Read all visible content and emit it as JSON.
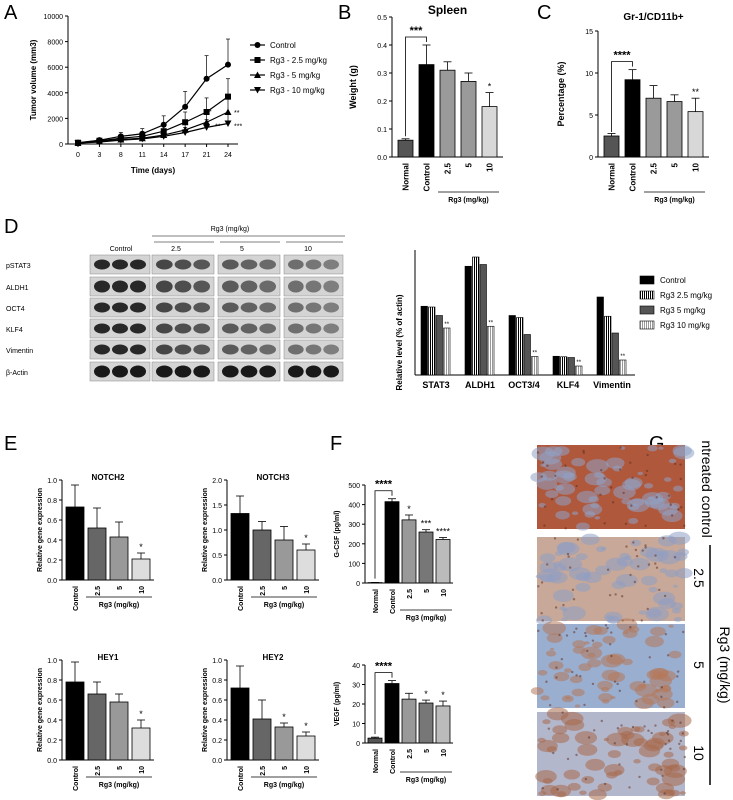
{
  "panels": {
    "A": "A",
    "B": "B",
    "C": "C",
    "D": "D",
    "E": "E",
    "F": "F",
    "G": "G"
  },
  "colors": {
    "control": "#000000",
    "dose25": "#4a4a4a",
    "dose5": "#8a8a8a",
    "dose10": "#c8c8c8",
    "normal": "#555555"
  },
  "chart_data": [
    {
      "id": "A",
      "type": "line",
      "ylabel": "Tumor volume (mm3)",
      "xlabel": "Time (days)",
      "x": [
        0,
        3,
        8,
        11,
        14,
        17,
        21,
        24
      ],
      "ylim": [
        0,
        10000
      ],
      "yticks": [
        0,
        2000,
        4000,
        6000,
        8000,
        10000
      ],
      "series": [
        {
          "name": "Control",
          "marker": "circle",
          "values": [
            100,
            300,
            600,
            800,
            1500,
            2900,
            5100,
            6200
          ],
          "err": [
            50,
            150,
            300,
            400,
            700,
            1200,
            1800,
            2000
          ]
        },
        {
          "name": "Rg3 - 2.5 mg/kg",
          "marker": "square",
          "values": [
            100,
            250,
            450,
            600,
            1000,
            1700,
            2500,
            3700
          ],
          "err": [
            50,
            120,
            250,
            300,
            500,
            800,
            1100,
            1400
          ]
        },
        {
          "name": "Rg3 - 5 mg/kg",
          "marker": "triangle-up",
          "values": [
            80,
            200,
            350,
            450,
            700,
            1100,
            1700,
            2500
          ],
          "err": [
            40,
            100,
            200,
            250,
            400,
            600,
            800,
            1000
          ]
        },
        {
          "name": "Rg3 - 10 mg/kg",
          "marker": "triangle-down",
          "values": [
            80,
            150,
            300,
            400,
            600,
            900,
            1300,
            1600
          ],
          "err": [
            40,
            80,
            150,
            200,
            300,
            400,
            600,
            700
          ]
        }
      ],
      "annotations": [
        "**",
        "*",
        "**",
        "***"
      ]
    },
    {
      "id": "B",
      "type": "bar",
      "title": "Spleen",
      "ylabel": "Weight (g)",
      "categories": [
        "Normal",
        "Control",
        "2.5",
        "5",
        "10"
      ],
      "values": [
        0.06,
        0.33,
        0.31,
        0.27,
        0.18
      ],
      "err": [
        0.005,
        0.07,
        0.03,
        0.03,
        0.05
      ],
      "ylim": [
        0,
        0.5
      ],
      "yticks": [
        "0.0",
        "0.1",
        "0.2",
        "0.3",
        "0.4",
        "0.5"
      ],
      "sig": [
        "",
        "",
        "",
        "",
        "*"
      ],
      "bracket": "***",
      "group_label": "Rg3 (mg/kg)"
    },
    {
      "id": "C",
      "type": "bar",
      "title": "Gr-1/CD11b+",
      "ylabel": "Percentage (%)",
      "categories": [
        "Normal",
        "Control",
        "2.5",
        "5",
        "10"
      ],
      "values": [
        2.5,
        9.2,
        7.0,
        6.6,
        5.4
      ],
      "err": [
        0.3,
        1.2,
        1.5,
        0.8,
        1.6
      ],
      "ylim": [
        0,
        15
      ],
      "yticks": [
        "0",
        "5",
        "10",
        "15"
      ],
      "sig": [
        "",
        "",
        "",
        "",
        "**"
      ],
      "bracket": "****",
      "group_label": "Rg3 (mg/kg)"
    },
    {
      "id": "D",
      "type": "bar",
      "ylabel": "Relative level (% of actin)",
      "categories": [
        "STAT3",
        "ALDH1",
        "OCT3/4",
        "KLF4",
        "Vimentin"
      ],
      "ylim": [
        0,
        5
      ],
      "series": [
        {
          "name": "Control",
          "values": [
            2.75,
            4.35,
            2.38,
            0.75,
            3.12
          ]
        },
        {
          "name": "Rg3 2.5 mg/kg",
          "values": [
            2.72,
            4.72,
            2.3,
            0.73,
            2.35
          ]
        },
        {
          "name": "Rg3 5 mg/kg",
          "values": [
            2.38,
            4.42,
            1.62,
            0.7,
            1.68
          ]
        },
        {
          "name": "Rg3 10 mg/kg",
          "values": [
            1.88,
            1.95,
            0.74,
            0.36,
            0.6
          ]
        }
      ],
      "sig": [
        "**",
        "**",
        "**",
        "**",
        "**"
      ]
    },
    {
      "id": "E1",
      "type": "bar",
      "title": "NOTCH2",
      "ylabel": "Relative gene expression",
      "categories": [
        "Control",
        "2.5",
        "5",
        "10"
      ],
      "values": [
        0.73,
        0.52,
        0.43,
        0.21
      ],
      "err": [
        0.22,
        0.2,
        0.15,
        0.06
      ],
      "ylim": [
        0,
        1.0
      ],
      "yticks": [
        "0.0",
        "0.2",
        "0.4",
        "0.6",
        "0.8",
        "1.0"
      ],
      "sig": [
        "",
        "",
        "",
        "*"
      ],
      "group_label": "Rg3 (mg/kg)"
    },
    {
      "id": "E2",
      "type": "bar",
      "title": "NOTCH3",
      "ylabel": "Relative gene expression",
      "categories": [
        "Control",
        "2.5",
        "5",
        "10"
      ],
      "values": [
        1.33,
        1.0,
        0.8,
        0.6
      ],
      "err": [
        0.35,
        0.17,
        0.27,
        0.12
      ],
      "ylim": [
        0,
        2.0
      ],
      "yticks": [
        "0.0",
        "0.5",
        "1.0",
        "1.5",
        "2.0"
      ],
      "sig": [
        "",
        "",
        "",
        "*"
      ],
      "group_label": "Rg3 (mg/kg)"
    },
    {
      "id": "E3",
      "type": "bar",
      "title": "HEY1",
      "ylabel": "Relative gene expression",
      "categories": [
        "Control",
        "2.5",
        "5",
        "10"
      ],
      "values": [
        0.78,
        0.66,
        0.58,
        0.32
      ],
      "err": [
        0.2,
        0.12,
        0.08,
        0.08
      ],
      "ylim": [
        0,
        1.0
      ],
      "yticks": [
        "0.0",
        "0.2",
        "0.4",
        "0.6",
        "0.8",
        "1.0"
      ],
      "sig": [
        "",
        "",
        "",
        "*"
      ],
      "group_label": "Rg3 (mg/kg)"
    },
    {
      "id": "E4",
      "type": "bar",
      "title": "HEY2",
      "ylabel": "Relative gene expression",
      "categories": [
        "Control",
        "2.5",
        "5",
        "10"
      ],
      "values": [
        0.72,
        0.41,
        0.33,
        0.24
      ],
      "err": [
        0.22,
        0.19,
        0.04,
        0.04
      ],
      "ylim": [
        0,
        1.0
      ],
      "yticks": [
        "0.0",
        "0.2",
        "0.4",
        "0.6",
        "0.8",
        "1.0"
      ],
      "sig": [
        "",
        "",
        "*",
        "*"
      ],
      "group_label": "Rg3 (mg/kg)"
    },
    {
      "id": "F1",
      "type": "bar",
      "ylabel": "G-CSF (pg/ml)",
      "categories": [
        "Normal",
        "Control",
        "2.5",
        "5",
        "10"
      ],
      "values": [
        2,
        415,
        322,
        260,
        222
      ],
      "err": [
        1,
        15,
        25,
        12,
        10
      ],
      "ylim": [
        0,
        500
      ],
      "yticks": [
        "0",
        "100",
        "200",
        "300",
        "400",
        "500"
      ],
      "sig": [
        "",
        "",
        "*",
        "***",
        "****"
      ],
      "bracket": "****",
      "group_label": "Rg3 (mg/kg)"
    },
    {
      "id": "F2",
      "type": "bar",
      "ylabel": "VEGF (pg/ml)",
      "categories": [
        "Normal",
        "Control",
        "2.5",
        "5",
        "10"
      ],
      "values": [
        2.5,
        30.5,
        22.5,
        20.5,
        19
      ],
      "err": [
        0.5,
        1.5,
        3,
        1.5,
        2.5
      ],
      "ylim": [
        0,
        40
      ],
      "yticks": [
        "0",
        "10",
        "20",
        "30",
        "40"
      ],
      "sig": [
        "",
        "",
        "",
        "*",
        "*"
      ],
      "bracket": "****",
      "group_label": "Rg3 (mg/kg)"
    }
  ],
  "blot": {
    "title": "Rg3 (mg/kg)",
    "groups": [
      "Control",
      "2.5",
      "5",
      "10"
    ],
    "rows": [
      "pSTAT3",
      "ALDH1",
      "OCT4",
      "KLF4",
      "Vimentin",
      "β-Actin"
    ]
  },
  "ihc": {
    "labels": [
      "Untreated control",
      "2.5",
      "5",
      "10"
    ],
    "group_label": "Rg3 (mg/kg)"
  }
}
